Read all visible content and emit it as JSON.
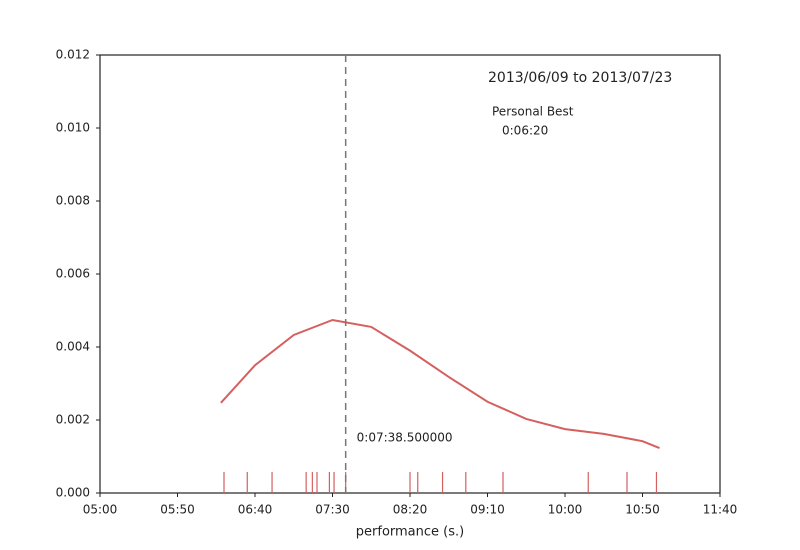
{
  "chart_data": {
    "type": "line",
    "xlabel": "performance (s.)",
    "x": [
      378,
      400,
      425,
      450,
      475,
      500,
      525,
      550,
      575,
      600,
      625,
      650,
      661
    ],
    "values": [
      0.00247,
      0.0035,
      0.00433,
      0.00474,
      0.00455,
      0.0039,
      0.00318,
      0.0025,
      0.00203,
      0.00175,
      0.00162,
      0.00142,
      0.00123
    ],
    "color": "#d65f5f",
    "rug": [
      380,
      395,
      411,
      433,
      437,
      440,
      448,
      451,
      458.5,
      500,
      505,
      521,
      536,
      560,
      615,
      640,
      659
    ],
    "vline": {
      "value": 458.5,
      "label": "0:07:38.500000"
    },
    "annotations": [
      "2013/06/09 to 2013/07/23",
      "Personal Best",
      "0:06:20"
    ],
    "xlim": [
      300,
      700
    ],
    "ylim": [
      0,
      0.012
    ],
    "xticks": [
      {
        "value": 300,
        "label": "05:00"
      },
      {
        "value": 350,
        "label": "05:50"
      },
      {
        "value": 400,
        "label": "06:40"
      },
      {
        "value": 450,
        "label": "07:30"
      },
      {
        "value": 500,
        "label": "08:20"
      },
      {
        "value": 550,
        "label": "09:10"
      },
      {
        "value": 600,
        "label": "10:00"
      },
      {
        "value": 650,
        "label": "10:50"
      },
      {
        "value": 700,
        "label": "11:40"
      }
    ],
    "yticks": [
      {
        "value": 0,
        "label": "0.000"
      },
      {
        "value": 0.002,
        "label": "0.002"
      },
      {
        "value": 0.004,
        "label": "0.004"
      },
      {
        "value": 0.006,
        "label": "0.006"
      },
      {
        "value": 0.008,
        "label": "0.008"
      },
      {
        "value": 0.01,
        "label": "0.010"
      },
      {
        "value": 0.012,
        "label": "0.012"
      }
    ]
  }
}
